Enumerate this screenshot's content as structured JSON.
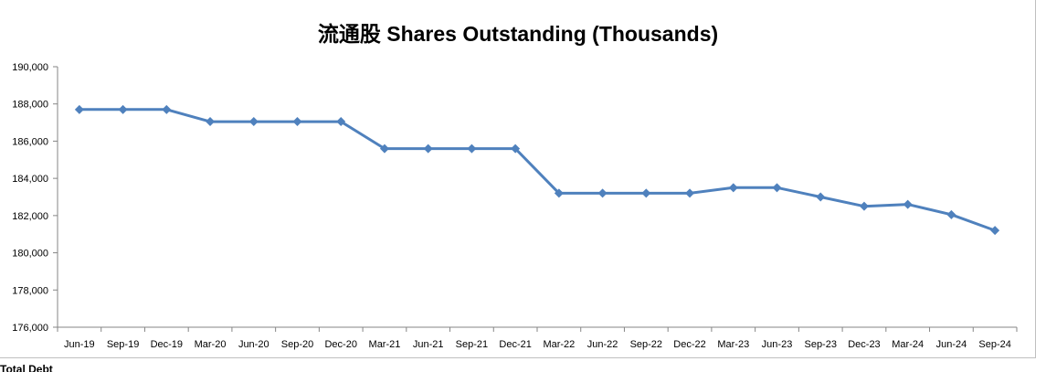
{
  "chart_data": {
    "type": "line",
    "title": "流通股 Shares Outstanding (Thousands)",
    "xlabel": "",
    "ylabel": "",
    "ylim": [
      176000,
      190000
    ],
    "y_ticks": [
      "176,000",
      "178,000",
      "180,000",
      "182,000",
      "184,000",
      "186,000",
      "188,000",
      "190,000"
    ],
    "categories": [
      "Jun-19",
      "Sep-19",
      "Dec-19",
      "Mar-20",
      "Jun-20",
      "Sep-20",
      "Dec-20",
      "Mar-21",
      "Jun-21",
      "Sep-21",
      "Dec-21",
      "Mar-22",
      "Jun-22",
      "Sep-22",
      "Dec-22",
      "Mar-23",
      "Jun-23",
      "Sep-23",
      "Dec-23",
      "Mar-24",
      "Jun-24",
      "Sep-24"
    ],
    "series": [
      {
        "values": [
          187700,
          187700,
          187700,
          187050,
          187050,
          187050,
          187050,
          185600,
          185600,
          185600,
          185600,
          183200,
          183200,
          183200,
          183200,
          183500,
          183500,
          183000,
          182500,
          182600,
          182050,
          181200
        ]
      }
    ],
    "line_color": "#4f81bd",
    "marker": "diamond",
    "grid": false,
    "legend": "none"
  },
  "below_chart_text": "Total Debt"
}
